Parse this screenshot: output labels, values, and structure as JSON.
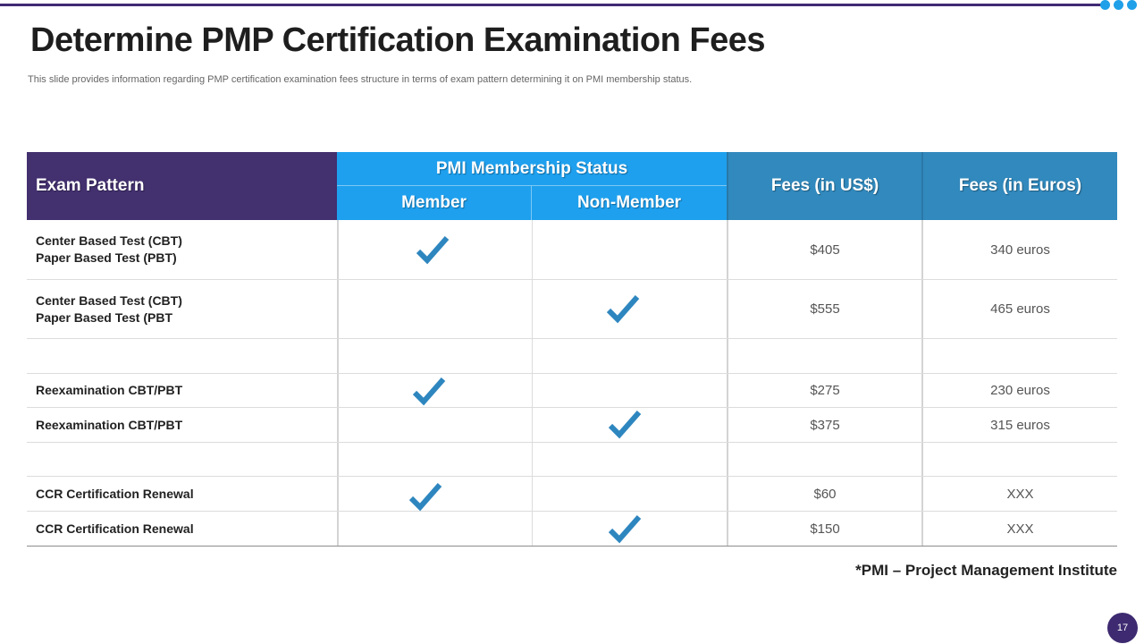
{
  "slide": {
    "title": "Determine PMP Certification Examination Fees",
    "subtitle": "This slide provides information regarding PMP certification examination fees structure in terms of exam pattern determining it on PMI  membership status.",
    "footnote": "*PMI – Project Management Institute",
    "page_number": "17"
  },
  "table": {
    "headers": {
      "exam_pattern": "Exam Pattern",
      "pmi_status": "PMI Membership Status",
      "member": "Member",
      "non_member": "Non-Member",
      "fees_usd": "Fees (in US$)",
      "fees_eur": "Fees (in Euros)"
    },
    "rows": [
      {
        "exam_line1": "Center Based Test (CBT)",
        "exam_line2": "Paper Based Test (PBT)",
        "member": true,
        "non_member": false,
        "usd": "$405",
        "eur": "340 euros"
      },
      {
        "exam_line1": "Center Based Test (CBT)",
        "exam_line2": "Paper Based Test (PBT",
        "member": false,
        "non_member": true,
        "usd": "$555",
        "eur": "465 euros"
      },
      {
        "exam_line1": "",
        "exam_line2": "",
        "member": false,
        "non_member": false,
        "usd": "",
        "eur": ""
      },
      {
        "exam_line1": "Reexamination CBT/PBT",
        "exam_line2": "",
        "member": true,
        "non_member": false,
        "usd": "$275",
        "eur": "230 euros"
      },
      {
        "exam_line1": "Reexamination CBT/PBT",
        "exam_line2": "",
        "member": false,
        "non_member": true,
        "usd": "$375",
        "eur": "315 euros"
      },
      {
        "exam_line1": "",
        "exam_line2": "",
        "member": false,
        "non_member": false,
        "usd": "",
        "eur": ""
      },
      {
        "exam_line1": "CCR Certification Renewal",
        "exam_line2": "",
        "member": true,
        "non_member": false,
        "usd": "$60",
        "eur": "XXX"
      },
      {
        "exam_line1": "CCR Certification Renewal",
        "exam_line2": "",
        "member": false,
        "non_member": true,
        "usd": "$150",
        "eur": "XXX"
      }
    ]
  },
  "colors": {
    "header_purple": "#43306f",
    "header_light_blue": "#1ea0ee",
    "header_steel_blue": "#3189bd",
    "check_blue": "#2e86bf",
    "accent_dots": "#1fa0e8"
  },
  "icons": {
    "check": "check-mark-icon",
    "dots": "dots-decoration-icon"
  }
}
